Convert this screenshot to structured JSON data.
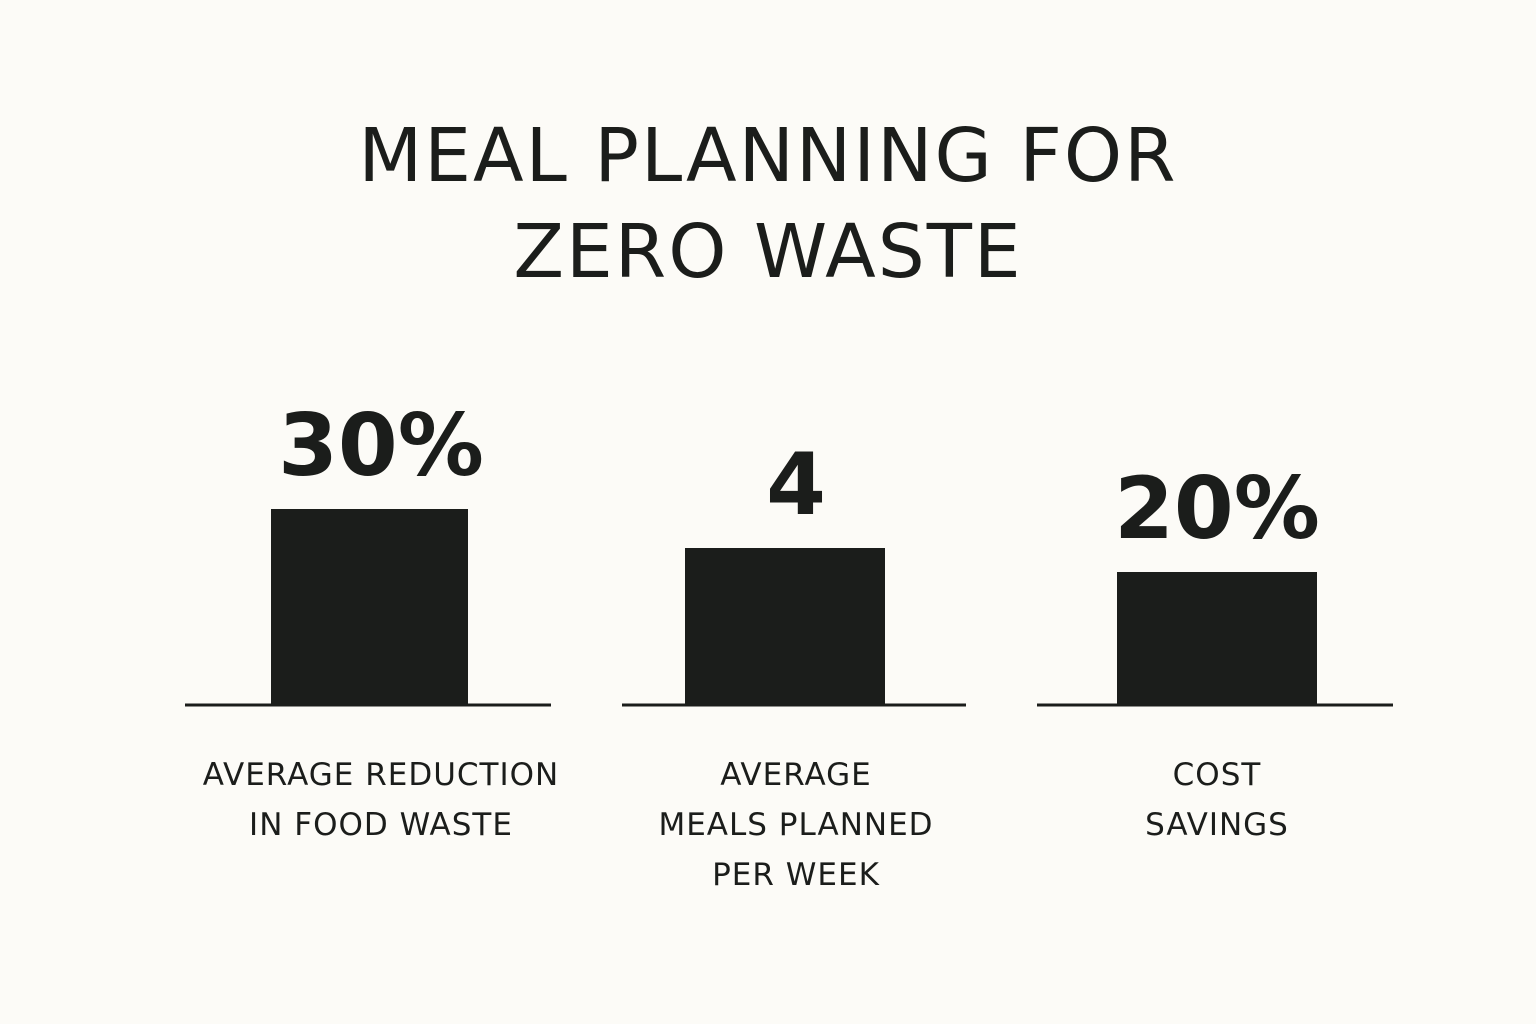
{
  "title_lines": [
    "MEAL PLANNING FOR",
    "ZERO WASTE"
  ],
  "colors": {
    "background": "#fcfbf7",
    "bar": "#1b1d1b",
    "text": "#1b1d1b"
  },
  "chart_data": {
    "type": "bar",
    "title": "MEAL PLANNING FOR ZERO WASTE",
    "layout": "three separate single-bar panels, each with its own baseline, value label above the bar and category label below",
    "axes_shown": false,
    "grid": false,
    "legend": "none",
    "categories": [
      [
        "AVERAGE REDUCTION",
        "IN FOOD WASTE"
      ],
      [
        "AVERAGE",
        "MEALS PLANNED",
        "PER WEEK"
      ],
      [
        "COST",
        "SAVINGS"
      ]
    ],
    "value_labels": [
      "30%",
      "4",
      "20%"
    ],
    "values": [
      30,
      4,
      20
    ],
    "units": [
      "%",
      "meals per week",
      "%"
    ],
    "relative_bar_heights": [
      1.0,
      0.8,
      0.68
    ]
  }
}
